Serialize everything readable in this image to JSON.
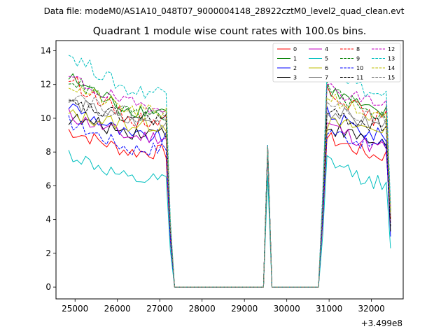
{
  "chart_data": {
    "type": "line",
    "suptitle": "Data file: modeM0/AS1A10_048T07_9000004148_28922cztM0_level2_quad_clean.evt",
    "title": "Quadrant 1 module wise count rates with 100.0s bins.",
    "xlabel": "",
    "ylabel": "",
    "x_offset_label": "+3.499e8",
    "xlim": [
      24550,
      32750
    ],
    "ylim": [
      -0.7,
      14.6
    ],
    "xticks": [
      25000,
      26000,
      27000,
      28000,
      29000,
      30000,
      31000,
      32000
    ],
    "xtick_labels": [
      "25000",
      "26000",
      "27000",
      "28000",
      "29000",
      "30000",
      "31000",
      "32000"
    ],
    "yticks": [
      0,
      2,
      4,
      6,
      8,
      10,
      12,
      14
    ],
    "ytick_labels": [
      "0",
      "2",
      "4",
      "6",
      "8",
      "10",
      "12",
      "14"
    ],
    "legend_position": "top-right",
    "legend_columns": 4,
    "segments": {
      "active1_start": 24850,
      "active1_end": 27150,
      "drop1_end": 27350,
      "zero1_end": 29450,
      "spike_peak": 29550,
      "zero2_start": 29650,
      "zero2_end": 30750,
      "active2_start": 30950,
      "active2_end": 32450
    },
    "series": [
      {
        "name": "0",
        "color": "#ff0000",
        "dash": "solid",
        "level1": 8.0,
        "level2": 7.8,
        "start": 9.3,
        "spike": 8.3,
        "end": 4.0
      },
      {
        "name": "1",
        "color": "#008000",
        "dash": "solid",
        "level1": 10.5,
        "level2": 10.3,
        "start": 12.4,
        "spike": 8.3,
        "end": 4.5
      },
      {
        "name": "2",
        "color": "#0000ff",
        "dash": "solid",
        "level1": 8.9,
        "level2": 9.0,
        "start": 10.8,
        "spike": 8.4,
        "end": 3.0
      },
      {
        "name": "3",
        "color": "#000000",
        "dash": "solid",
        "level1": 9.2,
        "level2": 8.6,
        "start": 10.0,
        "spike": 8.2,
        "end": 3.3
      },
      {
        "name": "4",
        "color": "#c000c0",
        "dash": "solid",
        "level1": 8.9,
        "level2": 8.3,
        "start": 10.2,
        "spike": 8.0,
        "end": 3.8
      },
      {
        "name": "5",
        "color": "#00bfbf",
        "dash": "solid",
        "level1": 6.3,
        "level2": 6.2,
        "start": 7.9,
        "spike": 6.6,
        "end": 2.3
      },
      {
        "name": "6",
        "color": "#bfbf00",
        "dash": "solid",
        "level1": 9.6,
        "level2": 9.4,
        "start": 10.2,
        "spike": 8.0,
        "end": 4.0
      },
      {
        "name": "7",
        "color": "#808080",
        "dash": "solid",
        "level1": 9.8,
        "level2": 9.6,
        "start": 11.0,
        "spike": 8.1,
        "end": 4.2
      },
      {
        "name": "8",
        "color": "#ff0000",
        "dash": "dashed",
        "level1": 9.9,
        "level2": 10.0,
        "start": 12.4,
        "spike": 8.2,
        "end": 4.0
      },
      {
        "name": "9",
        "color": "#008000",
        "dash": "dashed",
        "level1": 10.2,
        "level2": 10.2,
        "start": 12.4,
        "spike": 8.4,
        "end": 4.5
      },
      {
        "name": "10",
        "color": "#0000ff",
        "dash": "dashed",
        "level1": 8.2,
        "level2": 8.4,
        "start": 9.8,
        "spike": 8.0,
        "end": 3.6
      },
      {
        "name": "11",
        "color": "#000000",
        "dash": "dashed",
        "level1": 10.0,
        "level2": 9.6,
        "start": 10.8,
        "spike": 8.3,
        "end": 3.6
      },
      {
        "name": "12",
        "color": "#c000c0",
        "dash": "dashed",
        "level1": 10.8,
        "level2": 11.0,
        "start": 12.4,
        "spike": 8.4,
        "end": 4.7
      },
      {
        "name": "13",
        "color": "#00bfbf",
        "dash": "dashed",
        "level1": 11.6,
        "level2": 11.4,
        "start": 13.8,
        "spike": 8.4,
        "end": 4.9
      },
      {
        "name": "14",
        "color": "#bfbf00",
        "dash": "dashed",
        "level1": 10.4,
        "level2": 10.0,
        "start": 12.0,
        "spike": 8.3,
        "end": 4.4
      },
      {
        "name": "15",
        "color": "#808080",
        "dash": "dashed",
        "level1": 10.2,
        "level2": 10.0,
        "start": 11.5,
        "spike": 8.3,
        "end": 4.3
      }
    ]
  }
}
